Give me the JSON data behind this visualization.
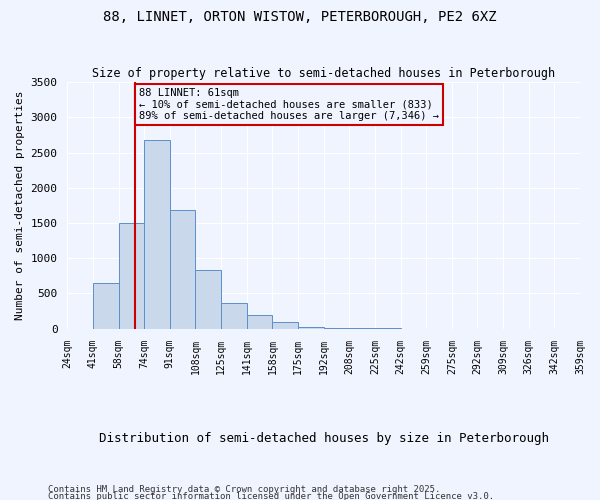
{
  "title": "88, LINNET, ORTON WISTOW, PETERBOROUGH, PE2 6XZ",
  "subtitle": "Size of property relative to semi-detached houses in Peterborough",
  "xlabel": "Distribution of semi-detached houses by size in Peterborough",
  "ylabel": "Number of semi-detached properties",
  "footnote1": "Contains HM Land Registry data © Crown copyright and database right 2025.",
  "footnote2": "Contains public sector information licensed under the Open Government Licence v3.0.",
  "annotation_line1": "88 LINNET: 61sqm",
  "annotation_line2": "← 10% of semi-detached houses are smaller (833)",
  "annotation_line3": "89% of semi-detached houses are larger (7,346) →",
  "bar_color": "#c9d9eb",
  "bar_edge_color": "#5b8fc9",
  "red_line_color": "#cc0000",
  "annotation_box_color": "#cc0000",
  "background_color": "#f0f4ff",
  "ylim": [
    0,
    3500
  ],
  "bin_labels": [
    "24sqm",
    "41sqm",
    "58sqm",
    "74sqm",
    "91sqm",
    "108sqm",
    "125sqm",
    "141sqm",
    "158sqm",
    "175sqm",
    "192sqm",
    "208sqm",
    "225sqm",
    "242sqm",
    "259sqm",
    "275sqm",
    "292sqm",
    "309sqm",
    "326sqm",
    "342sqm",
    "359sqm"
  ],
  "bar_values": [
    0,
    650,
    1500,
    2680,
    1680,
    830,
    370,
    200,
    90,
    30,
    10,
    5,
    3,
    2,
    1,
    0,
    0,
    0,
    0,
    0
  ],
  "red_line_x": 2.15,
  "property_sqm": 61
}
